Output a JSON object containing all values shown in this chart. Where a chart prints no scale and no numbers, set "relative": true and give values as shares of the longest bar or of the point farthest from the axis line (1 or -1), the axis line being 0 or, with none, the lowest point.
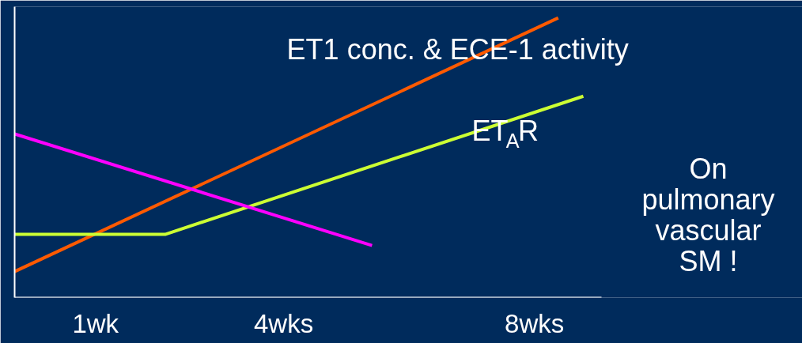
{
  "chart_data": {
    "type": "line",
    "relative": true,
    "xlim": [
      -0.29,
      9.07
    ],
    "xticks": [
      {
        "value": 1,
        "label": "1wk"
      },
      {
        "value": 4,
        "label": "4wks"
      },
      {
        "value": 8,
        "label": "8wks"
      }
    ],
    "series": [
      {
        "name": "ET1 conc. &  ECE-1 activity",
        "color": "#ff5a00",
        "x": [
          -0.29,
          8.38
        ],
        "values": [
          0.093,
          1
        ]
      },
      {
        "name": "ET$_{A}$R",
        "color": "#ccff33",
        "x": [
          -0.29,
          2.11,
          8.78
        ],
        "values": [
          0.226,
          0.226,
          0.72
        ]
      },
      {
        "color": "#ff00ff",
        "x": [
          -0.29,
          5.41
        ],
        "values": [
          0.585,
          0.186
        ]
      }
    ],
    "annotations": [
      {
        "text": "On\npulmonary\nvascular\nSM !"
      }
    ],
    "grid": false,
    "marker": "none",
    "line_style": "solid"
  }
}
